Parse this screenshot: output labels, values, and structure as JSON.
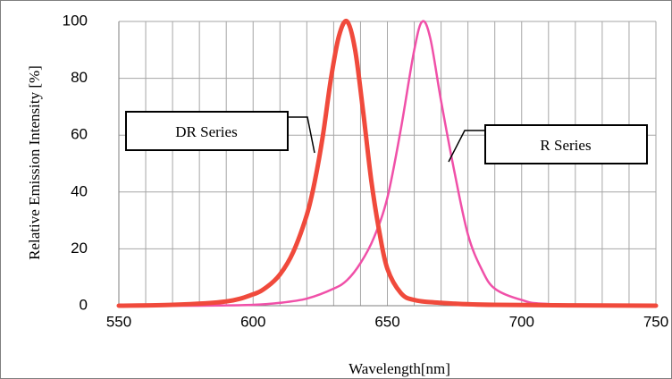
{
  "chart_data": {
    "type": "line",
    "title": "",
    "xlabel": "Wavelength[nm]",
    "ylabel": "Relative Emission Intensity [%]",
    "xlim": [
      550,
      750
    ],
    "ylim": [
      0,
      100
    ],
    "x_ticks": [
      "550",
      "600",
      "650",
      "700",
      "750"
    ],
    "y_ticks": [
      "0",
      "20",
      "40",
      "60",
      "80",
      "100"
    ],
    "grid": true,
    "legend": "none",
    "series": [
      {
        "name": "DR Series",
        "color": "#f04a3c",
        "x": [
          550,
          570,
          590,
          600,
          605,
          610,
          615,
          620,
          623,
          626,
          629,
          632,
          635,
          638,
          641,
          644,
          647,
          650,
          655,
          660,
          670,
          690,
          750
        ],
        "y": [
          0,
          0.3,
          1.5,
          4,
          6.5,
          11,
          19,
          32,
          44,
          60,
          80,
          95,
          100,
          90,
          68,
          44,
          26,
          13,
          4.5,
          2,
          1,
          0.3,
          0
        ]
      },
      {
        "name": "R Series",
        "color": "#f050a8",
        "x": [
          550,
          580,
          600,
          610,
          620,
          630,
          635,
          640,
          645,
          650,
          655,
          660,
          663,
          666,
          670,
          675,
          680,
          685,
          690,
          700,
          710,
          750
        ],
        "y": [
          0,
          0,
          0.3,
          1,
          2.5,
          6,
          9,
          15,
          24,
          38,
          62,
          90,
          100,
          94,
          72,
          47,
          25,
          13,
          6,
          2,
          0.6,
          0
        ]
      }
    ],
    "annotations": [
      {
        "text": "DR Series",
        "series": 0
      },
      {
        "text": "R Series",
        "series": 1
      }
    ]
  }
}
